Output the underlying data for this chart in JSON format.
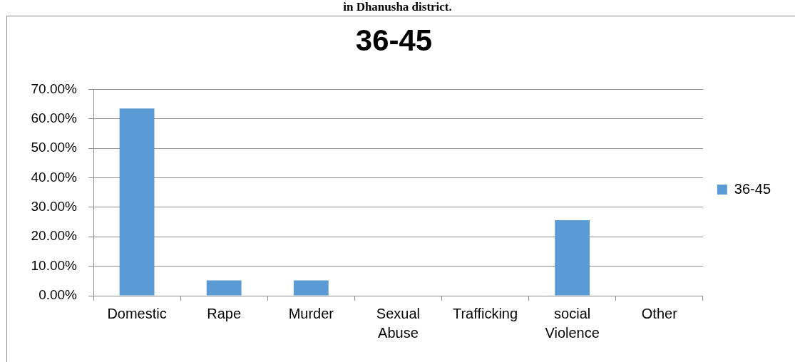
{
  "chart_data": {
    "type": "bar",
    "title": "36-45",
    "annotations": [
      "in Dhanusha district."
    ],
    "categories": [
      "Domestic",
      "Rape",
      "Murder",
      "Sexual Abuse",
      "Trafficking",
      "social Violence",
      "Other"
    ],
    "series": [
      {
        "name": "36-45",
        "color": "#5b9bd5",
        "values": [
          63.5,
          5.2,
          5.2,
          0,
          0,
          25.6,
          0
        ]
      }
    ],
    "ylim": [
      0,
      70
    ],
    "yticks": [
      {
        "value": 0,
        "label": "0.00%"
      },
      {
        "value": 10,
        "label": "10.00%"
      },
      {
        "value": 20,
        "label": "20.00%"
      },
      {
        "value": 30,
        "label": "30.00%"
      },
      {
        "value": 40,
        "label": "40.00%"
      },
      {
        "value": 50,
        "label": "50.00%"
      },
      {
        "value": 60,
        "label": "60.00%"
      },
      {
        "value": 70,
        "label": "70.00%"
      }
    ],
    "grid": "y",
    "legend": "right"
  }
}
